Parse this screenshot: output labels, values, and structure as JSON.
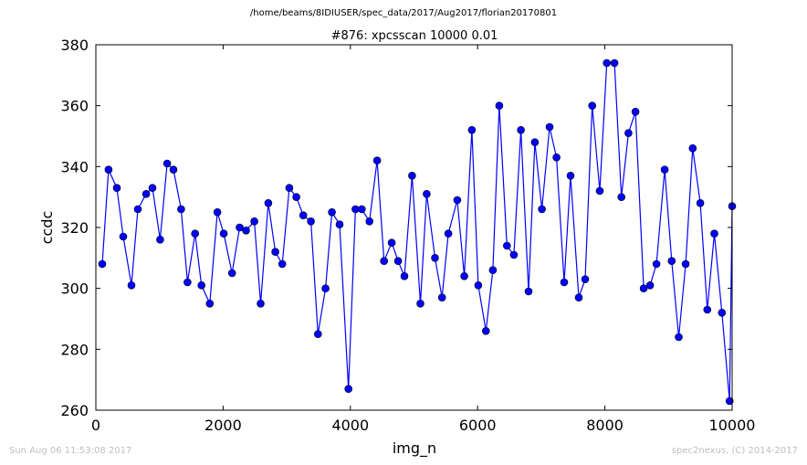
{
  "figure": {
    "suptitle": "/home/beams/8IDIUSER/spec_data/2017/Aug2017/florian20170801",
    "footer_left": "Sun Aug 06 11:53:08 2017",
    "footer_right": "spec2nexus, (C) 2014-2017"
  },
  "chart_data": {
    "type": "line",
    "title": "#876: xpcsscan 10000 0.01",
    "xlabel": "img_n",
    "ylabel": "ccdc",
    "xlim": [
      0,
      10000
    ],
    "ylim": [
      260,
      380
    ],
    "xticks": [
      "0",
      "2000",
      "4000",
      "6000",
      "8000",
      "10000"
    ],
    "yticks": [
      "260",
      "280",
      "300",
      "320",
      "340",
      "360",
      "380"
    ],
    "marker": "circle",
    "color": "#0000ff",
    "grid": false,
    "x": [
      100,
      200,
      330,
      430,
      560,
      660,
      790,
      890,
      1010,
      1120,
      1220,
      1340,
      1440,
      1560,
      1660,
      1790,
      1910,
      2010,
      2140,
      2260,
      2360,
      2490,
      2590,
      2710,
      2820,
      2930,
      3040,
      3150,
      3260,
      3380,
      3490,
      3610,
      3710,
      3830,
      3970,
      4080,
      4180,
      4300,
      4420,
      4530,
      4650,
      4750,
      4850,
      4970,
      5100,
      5200,
      5330,
      5440,
      5540,
      5680,
      5790,
      5910,
      6010,
      6130,
      6240,
      6340,
      6460,
      6570,
      6680,
      6800,
      6900,
      7010,
      7130,
      7240,
      7360,
      7460,
      7590,
      7690,
      7800,
      7920,
      8030,
      8150,
      8260,
      8370,
      8480,
      8610,
      8710,
      8810,
      8940,
      9050,
      9160,
      9270,
      9380,
      9500,
      9610,
      9720,
      9840,
      9960,
      10000
    ],
    "y": [
      308,
      339,
      333,
      317,
      301,
      326,
      331,
      333,
      316,
      341,
      339,
      326,
      302,
      318,
      301,
      295,
      325,
      318,
      305,
      320,
      319,
      322,
      295,
      328,
      312,
      308,
      333,
      330,
      324,
      322,
      285,
      300,
      325,
      321,
      267,
      326,
      326,
      322,
      342,
      309,
      315,
      309,
      304,
      337,
      295,
      331,
      310,
      297,
      318,
      329,
      304,
      352,
      301,
      286,
      306,
      360,
      314,
      311,
      352,
      299,
      348,
      326,
      353,
      343,
      302,
      337,
      297,
      303,
      360,
      332,
      374,
      374,
      330,
      351,
      358,
      300,
      301,
      308,
      339,
      309,
      284,
      308,
      346,
      328,
      293,
      318,
      292,
      263,
      327
    ]
  }
}
